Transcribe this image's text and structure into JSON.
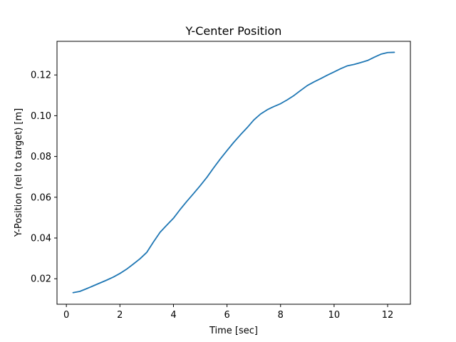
{
  "chart_data": {
    "type": "line",
    "title": "Y-Center Position",
    "xlabel": "Time [sec]",
    "ylabel": "Y-Position (rel to target) [m]",
    "xlim": [
      -0.35,
      12.85
    ],
    "ylim": [
      0.0075,
      0.1365
    ],
    "xticks": [
      0,
      2,
      4,
      6,
      8,
      10,
      12
    ],
    "yticks": [
      0.02,
      0.04,
      0.06,
      0.08,
      0.1,
      0.12
    ],
    "xtick_labels": [
      "0",
      "2",
      "4",
      "6",
      "8",
      "10",
      "12"
    ],
    "ytick_labels": [
      "0.02",
      "0.04",
      "0.06",
      "0.08",
      "0.10",
      "0.12"
    ],
    "grid": false,
    "line_color": "#1f77b4",
    "series": [
      {
        "x": [
          0.25,
          0.5,
          0.75,
          1.0,
          1.25,
          1.5,
          1.75,
          2.0,
          2.25,
          2.5,
          2.75,
          3.0,
          3.25,
          3.5,
          3.75,
          4.0,
          4.25,
          4.5,
          4.75,
          5.0,
          5.25,
          5.5,
          5.75,
          6.0,
          6.25,
          6.5,
          6.75,
          7.0,
          7.25,
          7.5,
          7.75,
          8.0,
          8.25,
          8.5,
          8.75,
          9.0,
          9.25,
          9.5,
          9.75,
          10.0,
          10.25,
          10.5,
          10.75,
          11.0,
          11.25,
          11.5,
          11.75,
          12.0,
          12.25
        ],
        "values": [
          0.0132,
          0.0138,
          0.0151,
          0.0165,
          0.0179,
          0.0193,
          0.0208,
          0.0226,
          0.0247,
          0.0272,
          0.0298,
          0.0329,
          0.038,
          0.0428,
          0.0463,
          0.0497,
          0.054,
          0.058,
          0.0618,
          0.0657,
          0.0698,
          0.0744,
          0.0788,
          0.0829,
          0.0869,
          0.0906,
          0.0941,
          0.0979,
          0.1008,
          0.1029,
          0.1045,
          0.1059,
          0.1078,
          0.1099,
          0.1124,
          0.1148,
          0.1166,
          0.1182,
          0.1199,
          0.1215,
          0.1231,
          0.1245,
          0.1252,
          0.1261,
          0.1271,
          0.1287,
          0.1302,
          0.131,
          0.1311
        ]
      }
    ]
  }
}
